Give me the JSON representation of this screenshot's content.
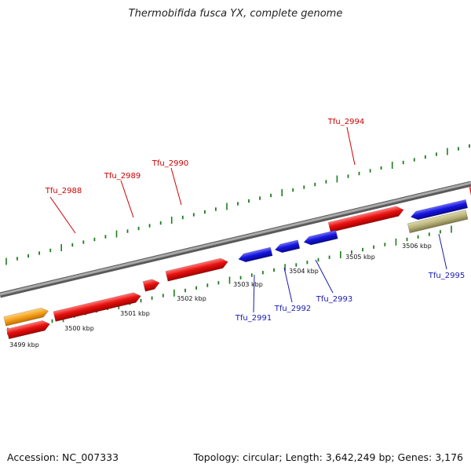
{
  "title": "Thermobifida fusca YX, complete genome",
  "accession": "Accession: NC_007333",
  "stats": "Topology: circular; Length: 3,642,249 bp; Genes: 3,176",
  "colors": {
    "forward_gene": "#e8120f",
    "reverse_gene": "#1515e0",
    "orange_feature": "#f5a01a",
    "tan_feature": "#b9b27a",
    "backbone": "#8c8c8c",
    "tick": "#1e7d1e",
    "forward_label": "#d00000",
    "reverse_label": "#1a1ab0"
  },
  "diagram": {
    "scale_labels": [
      "3499 kbp",
      "3500 kbp",
      "3501 kbp",
      "3502 kbp",
      "3503 kbp",
      "3504 kbp",
      "3505 kbp",
      "3506 kbp"
    ],
    "forward_labels": [
      "Tfu_2988",
      "Tfu_2989",
      "Tfu_2990",
      "Tfu_2994"
    ],
    "reverse_labels": [
      "Tfu_2991",
      "Tfu_2992",
      "Tfu_2993",
      "Tfu_2995"
    ]
  }
}
